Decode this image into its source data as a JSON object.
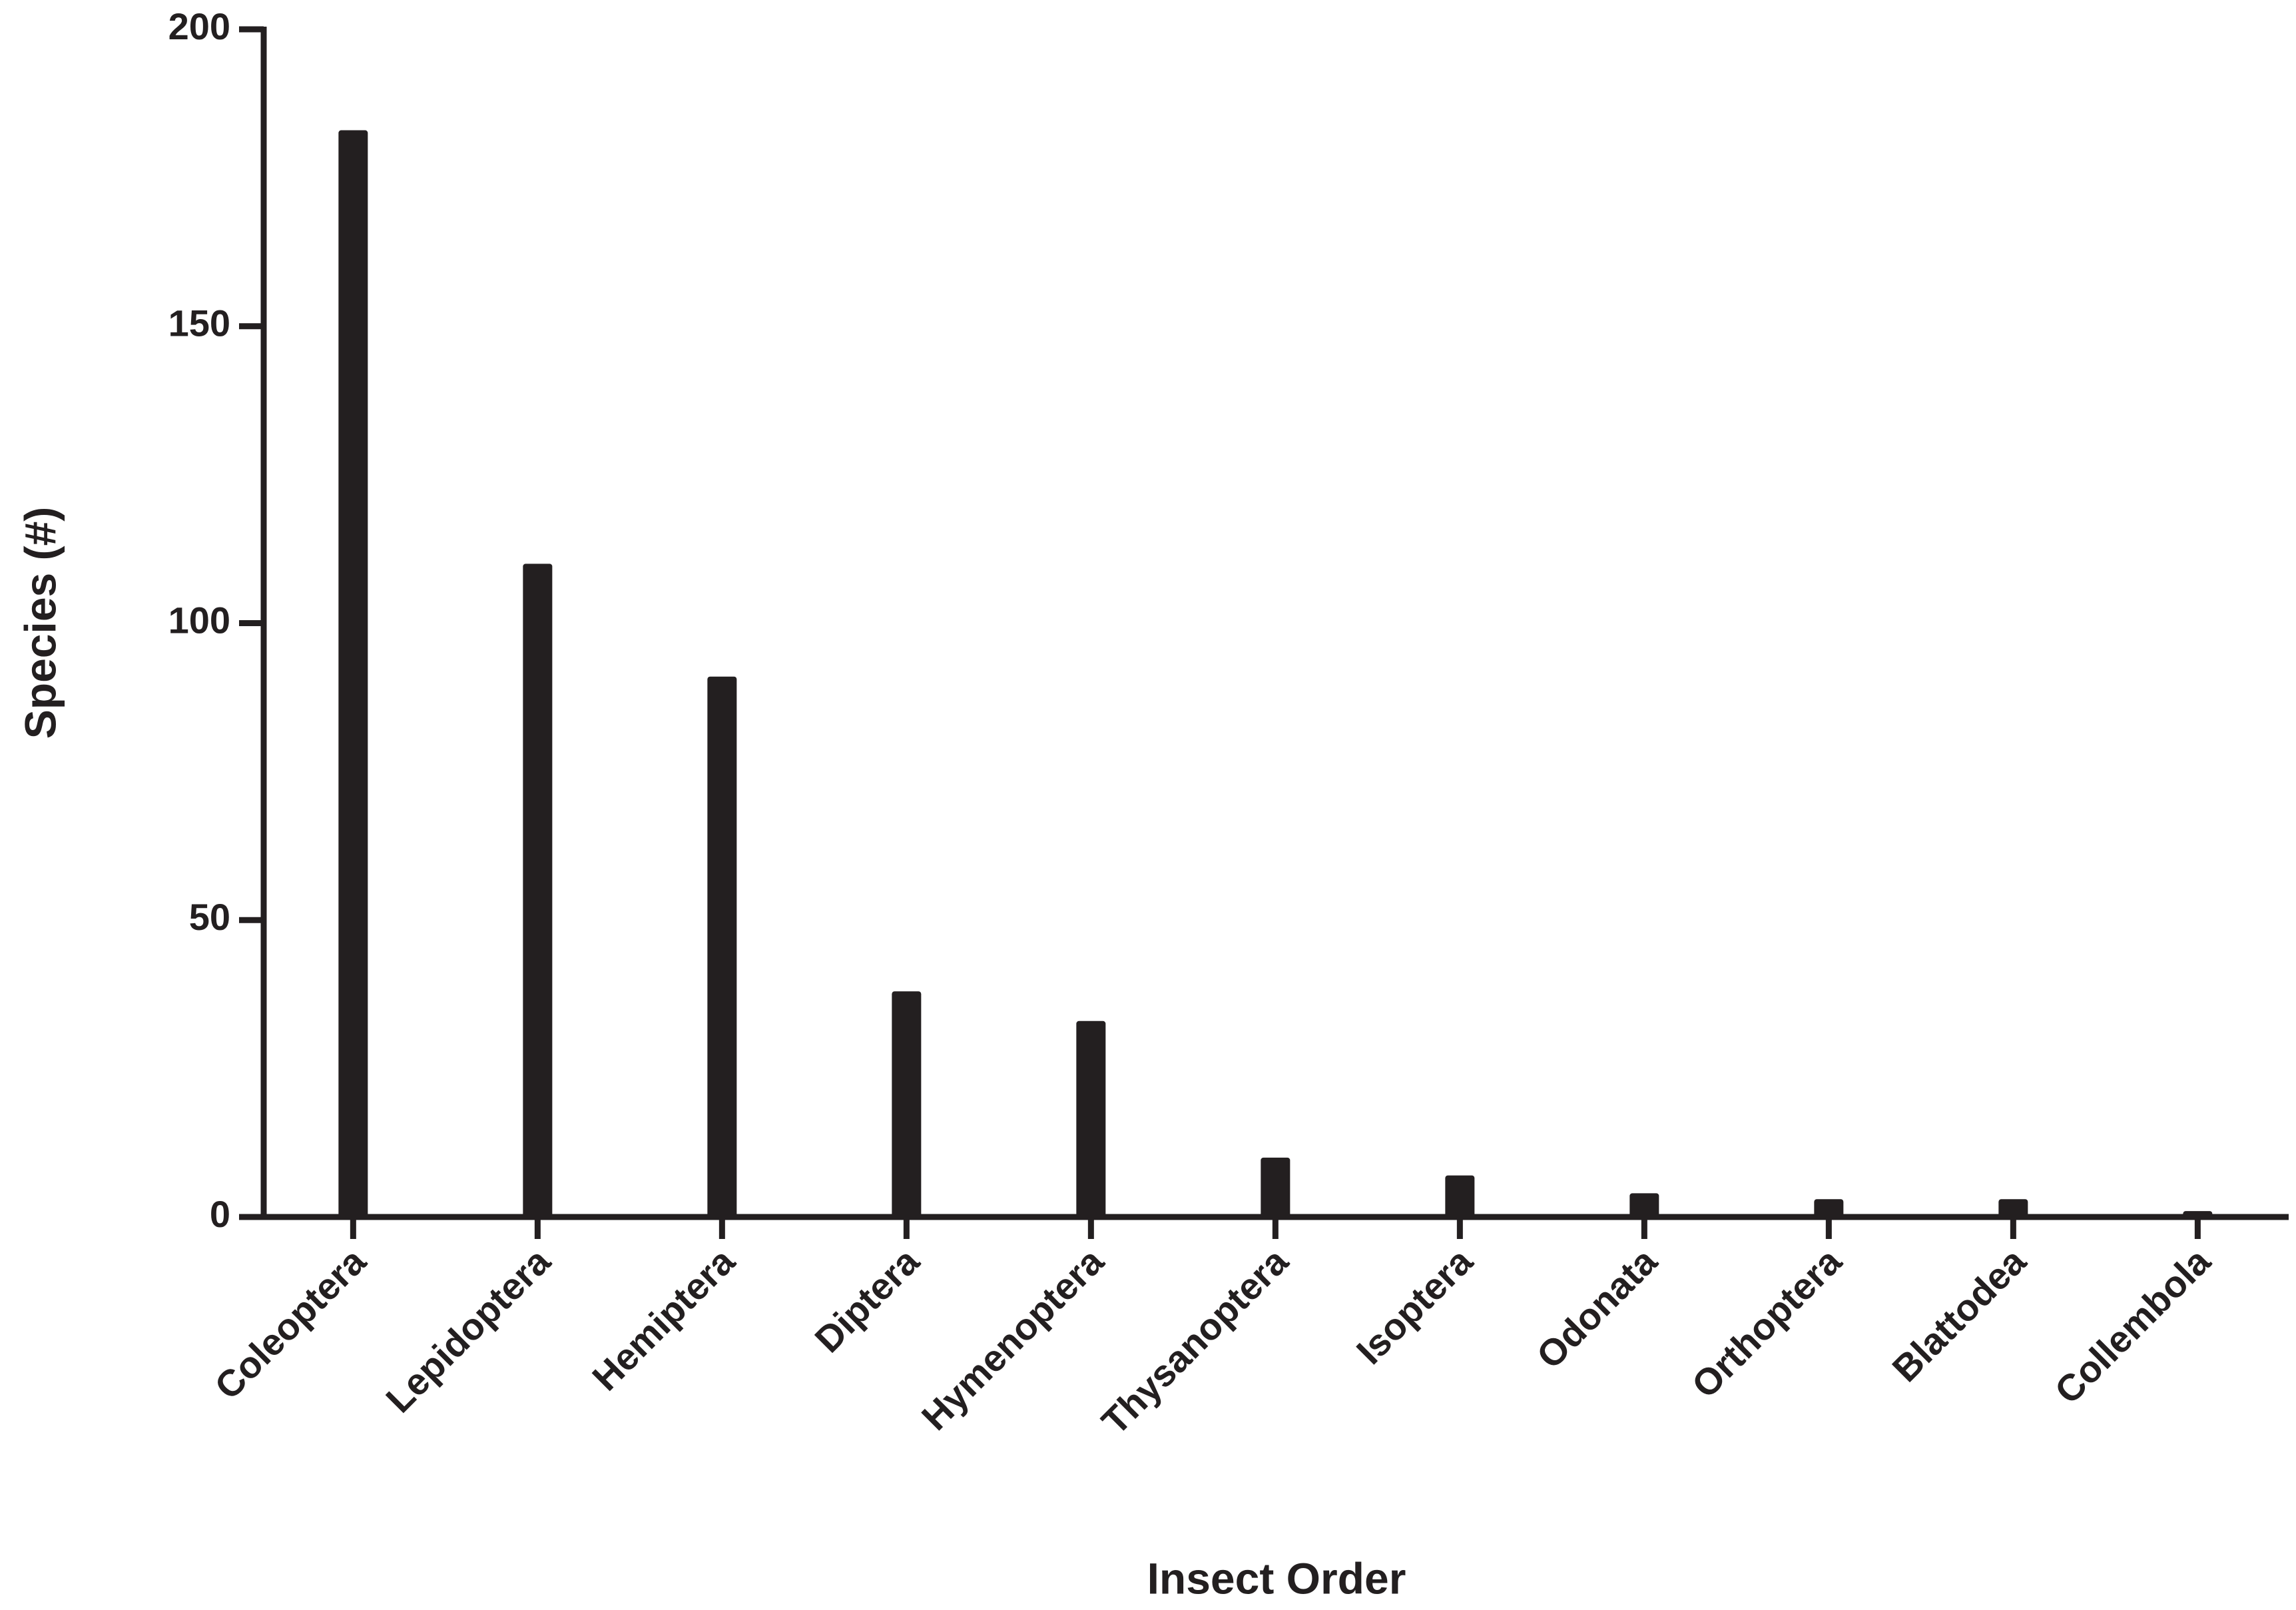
{
  "chart_data": {
    "type": "bar",
    "x_label": "Insect Order",
    "y_label": "Species (#)",
    "categories": [
      "Coleoptera",
      "Lepidoptera",
      "Hemiptera",
      "Diptera",
      "Hymenoptera",
      "Thysanoptera",
      "Isoptera",
      "Odonata",
      "Orthoptera",
      "Blattodea",
      "Collembola"
    ],
    "values": [
      183,
      110,
      91,
      38,
      33,
      10,
      7,
      4,
      3,
      3,
      1
    ],
    "color": "#231f20",
    "ylim": [
      0,
      200
    ],
    "yticks": [
      0,
      50,
      100,
      150,
      200
    ],
    "grid": false
  }
}
